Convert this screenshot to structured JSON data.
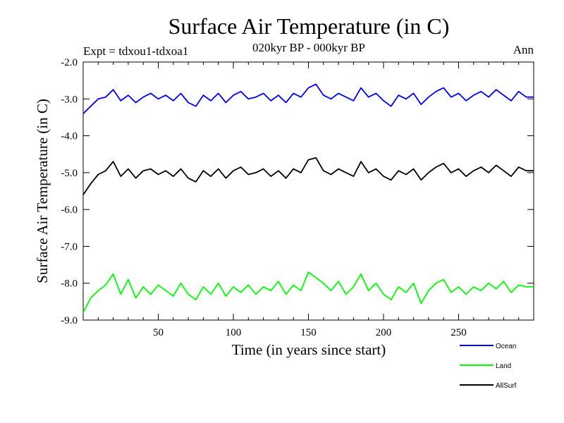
{
  "chart_data": {
    "type": "line",
    "title": "Surface Air Temperature (in C)",
    "subtitle": "020kyr BP - 000kyr BP",
    "experiment_label": "Expt = tdxou1-tdxoa1",
    "season_label": "Ann",
    "xlabel": "Time (in years since start)",
    "ylabel": "Surface Air Temperature (in C)",
    "xlim": [
      0,
      300
    ],
    "ylim": [
      -9.0,
      -2.0
    ],
    "x_ticks": [
      50,
      100,
      150,
      200,
      250
    ],
    "x_tick_labels": [
      "50",
      "100",
      "150",
      "200",
      "250"
    ],
    "y_ticks": [
      -9.0,
      -8.0,
      -7.0,
      -6.0,
      -5.0,
      -4.0,
      -3.0,
      -2.0
    ],
    "y_tick_labels": [
      "-9.0",
      "-8.0",
      "-7.0",
      "-6.0",
      "-5.0",
      "-4.0",
      "-3.0",
      "-2.0"
    ],
    "grid": false,
    "legend_position": "bottom-right",
    "series": [
      {
        "name": "Ocean",
        "color": "#0000ff",
        "x": [
          0,
          5,
          10,
          15,
          20,
          25,
          30,
          35,
          40,
          45,
          50,
          55,
          60,
          65,
          70,
          75,
          80,
          85,
          90,
          95,
          100,
          105,
          110,
          115,
          120,
          125,
          130,
          135,
          140,
          145,
          150,
          155,
          160,
          165,
          170,
          175,
          180,
          185,
          190,
          195,
          200,
          205,
          210,
          215,
          220,
          225,
          230,
          235,
          240,
          245,
          250,
          255,
          260,
          265,
          270,
          275,
          280,
          285,
          290,
          295,
          300
        ],
        "values": [
          -3.4,
          -3.2,
          -3.0,
          -2.95,
          -2.75,
          -3.05,
          -2.9,
          -3.1,
          -2.95,
          -2.85,
          -3.0,
          -2.9,
          -3.05,
          -2.85,
          -3.1,
          -3.2,
          -2.9,
          -3.05,
          -2.85,
          -3.1,
          -2.9,
          -2.8,
          -3.0,
          -2.95,
          -2.85,
          -3.05,
          -2.9,
          -3.1,
          -2.85,
          -2.95,
          -2.7,
          -2.6,
          -2.9,
          -3.0,
          -2.85,
          -2.95,
          -3.05,
          -2.7,
          -2.95,
          -2.85,
          -3.05,
          -3.2,
          -2.9,
          -3.0,
          -2.85,
          -3.15,
          -2.95,
          -2.8,
          -2.7,
          -2.95,
          -2.85,
          -3.05,
          -2.9,
          -2.8,
          -2.95,
          -2.75,
          -2.9,
          -3.05,
          -2.8,
          -2.95,
          -2.95
        ]
      },
      {
        "name": "Land",
        "color": "#00ff00",
        "x": [
          0,
          5,
          10,
          15,
          20,
          25,
          30,
          35,
          40,
          45,
          50,
          55,
          60,
          65,
          70,
          75,
          80,
          85,
          90,
          95,
          100,
          105,
          110,
          115,
          120,
          125,
          130,
          135,
          140,
          145,
          150,
          155,
          160,
          165,
          170,
          175,
          180,
          185,
          190,
          195,
          200,
          205,
          210,
          215,
          220,
          225,
          230,
          235,
          240,
          245,
          250,
          255,
          260,
          265,
          270,
          275,
          280,
          285,
          290,
          295,
          300
        ],
        "values": [
          -8.8,
          -8.4,
          -8.2,
          -8.05,
          -7.75,
          -8.3,
          -7.9,
          -8.4,
          -8.1,
          -8.3,
          -8.05,
          -8.2,
          -8.35,
          -8.0,
          -8.3,
          -8.45,
          -8.1,
          -8.3,
          -8.0,
          -8.35,
          -8.1,
          -8.25,
          -8.05,
          -8.3,
          -8.1,
          -8.2,
          -7.95,
          -8.3,
          -8.05,
          -8.2,
          -7.7,
          -7.85,
          -8.0,
          -8.2,
          -7.95,
          -8.3,
          -8.1,
          -7.75,
          -8.2,
          -8.0,
          -8.3,
          -8.45,
          -8.1,
          -8.25,
          -8.0,
          -8.55,
          -8.2,
          -8.0,
          -7.9,
          -8.25,
          -8.1,
          -8.3,
          -8.1,
          -8.2,
          -8.0,
          -8.15,
          -7.95,
          -8.25,
          -8.05,
          -8.1,
          -8.1
        ]
      },
      {
        "name": "AllSurf",
        "color": "#000000",
        "x": [
          0,
          5,
          10,
          15,
          20,
          25,
          30,
          35,
          40,
          45,
          50,
          55,
          60,
          65,
          70,
          75,
          80,
          85,
          90,
          95,
          100,
          105,
          110,
          115,
          120,
          125,
          130,
          135,
          140,
          145,
          150,
          155,
          160,
          165,
          170,
          175,
          180,
          185,
          190,
          195,
          200,
          205,
          210,
          215,
          220,
          225,
          230,
          235,
          240,
          245,
          250,
          255,
          260,
          265,
          270,
          275,
          280,
          285,
          290,
          295,
          300
        ],
        "values": [
          -5.6,
          -5.3,
          -5.05,
          -4.95,
          -4.7,
          -5.1,
          -4.9,
          -5.15,
          -4.95,
          -4.9,
          -5.05,
          -4.95,
          -5.1,
          -4.9,
          -5.15,
          -5.25,
          -4.95,
          -5.1,
          -4.9,
          -5.15,
          -4.95,
          -4.85,
          -5.05,
          -5.0,
          -4.9,
          -5.1,
          -4.95,
          -5.15,
          -4.9,
          -5.0,
          -4.65,
          -4.6,
          -4.95,
          -5.05,
          -4.9,
          -5.0,
          -5.1,
          -4.7,
          -5.0,
          -4.9,
          -5.1,
          -5.2,
          -4.95,
          -5.05,
          -4.9,
          -5.2,
          -5.0,
          -4.85,
          -4.75,
          -5.0,
          -4.9,
          -5.1,
          -4.95,
          -4.85,
          -5.0,
          -4.8,
          -4.95,
          -5.1,
          -4.85,
          -4.95,
          -4.95
        ]
      }
    ]
  }
}
